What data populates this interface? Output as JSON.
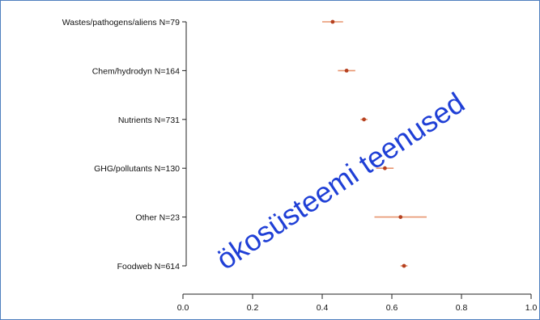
{
  "chart_data": {
    "type": "scatter",
    "subtype": "forest-plot",
    "title": "",
    "xlabel": "",
    "ylabel": "",
    "xlim": [
      0.0,
      1.0
    ],
    "x_ticks": [
      "0.0",
      "0.2",
      "0.4",
      "0.6",
      "0.8",
      "1.0"
    ],
    "grid": false,
    "categories": [
      "Wastes/pathogens/aliens N=79",
      "Chem/hydrodyn N=164",
      "Nutrients N=731",
      "GHG/pollutants N=130",
      "Other N=23",
      "Foodweb N=614"
    ],
    "points": [
      {
        "category": "Wastes/pathogens/aliens N=79",
        "estimate": 0.43,
        "lower": 0.4,
        "upper": 0.46
      },
      {
        "category": "Chem/hydrodyn N=164",
        "estimate": 0.47,
        "lower": 0.445,
        "upper": 0.495
      },
      {
        "category": "Nutrients N=731",
        "estimate": 0.52,
        "lower": 0.51,
        "upper": 0.53
      },
      {
        "category": "GHG/pollutants N=130",
        "estimate": 0.58,
        "lower": 0.555,
        "upper": 0.605
      },
      {
        "category": "Other N=23",
        "estimate": 0.625,
        "lower": 0.55,
        "upper": 0.7
      },
      {
        "category": "Foodweb N=614",
        "estimate": 0.635,
        "lower": 0.625,
        "upper": 0.645
      }
    ],
    "marker_color": "#b5401f",
    "errorbar_color": "#e8956f"
  },
  "watermark": {
    "text": "ökosüsteemi teenused",
    "color": "#1f3fd6"
  }
}
